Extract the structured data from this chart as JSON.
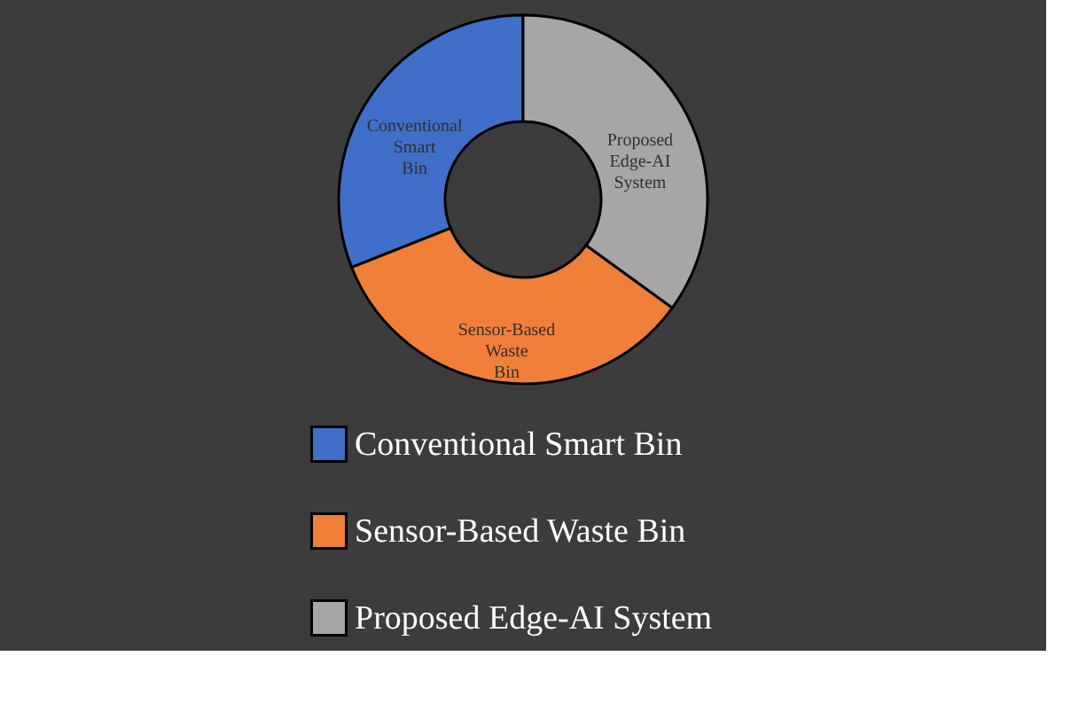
{
  "chart_data": {
    "type": "donut",
    "categories": [
      "Conventional Smart Bin",
      "Sensor-Based Waste Bin",
      "Proposed Edge-AI System"
    ],
    "values": [
      31,
      34,
      35
    ],
    "colors": [
      "#3f6fc8",
      "#f07f3a",
      "#a6a6a6"
    ],
    "legend": "bottom"
  }
}
